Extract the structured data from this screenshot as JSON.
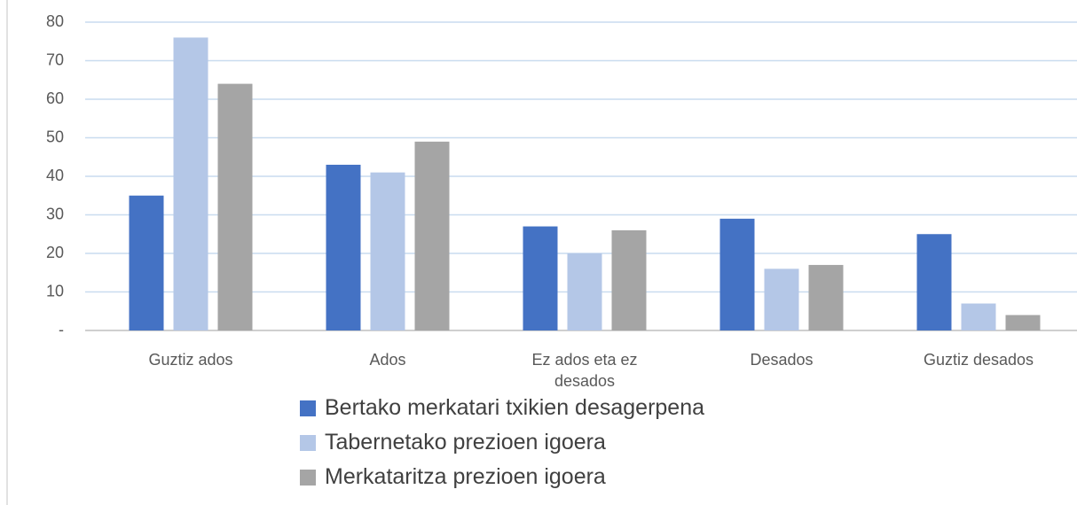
{
  "chart_data": {
    "type": "bar",
    "categories": [
      "Guztiz ados",
      "Ados",
      "Ez ados eta ez desados",
      "Desados",
      "Guztiz desados"
    ],
    "series": [
      {
        "name": "Bertako merkatari txikien desagerpena",
        "color": "#4472c4",
        "values": [
          35,
          43,
          27,
          29,
          25
        ]
      },
      {
        "name": "Tabernetako prezioen igoera",
        "color": "#b4c7e7",
        "values": [
          76,
          41,
          20,
          16,
          7
        ]
      },
      {
        "name": "Merkataritza prezioen igoera",
        "color": "#a5a5a5",
        "values": [
          64,
          49,
          26,
          17,
          4
        ]
      }
    ],
    "ylim": [
      0,
      80
    ],
    "yticks": [
      {
        "value": 0,
        "label": "-"
      },
      10,
      20,
      30,
      40,
      50,
      60,
      70,
      80
    ],
    "grid": true,
    "legend": "bottom"
  }
}
